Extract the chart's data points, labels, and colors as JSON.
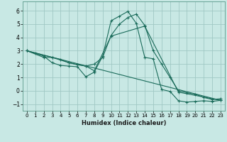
{
  "xlabel": "Humidex (Indice chaleur)",
  "xlim": [
    -0.5,
    23.5
  ],
  "ylim": [
    -1.5,
    6.7
  ],
  "xticks": [
    0,
    1,
    2,
    3,
    4,
    5,
    6,
    7,
    8,
    9,
    10,
    11,
    12,
    13,
    14,
    15,
    16,
    17,
    18,
    19,
    20,
    21,
    22,
    23
  ],
  "yticks": [
    -1,
    0,
    1,
    2,
    3,
    4,
    5,
    6
  ],
  "background_color": "#c8e8e4",
  "grid_color": "#a0c8c4",
  "line_color": "#1a6b5a",
  "line1_x": [
    0,
    1,
    2,
    3,
    4,
    5,
    6,
    7,
    8,
    9,
    10,
    11,
    12,
    13,
    14,
    15,
    16,
    17,
    18,
    19,
    20,
    21,
    22,
    23
  ],
  "line1_y": [
    3.0,
    2.8,
    2.6,
    2.1,
    1.9,
    1.85,
    1.8,
    1.05,
    1.4,
    2.6,
    5.25,
    5.6,
    5.95,
    5.05,
    2.5,
    2.4,
    0.1,
    -0.05,
    -0.75,
    -0.85,
    -0.8,
    -0.75,
    -0.8,
    -0.72
  ],
  "line2_x": [
    0,
    2,
    3,
    4,
    5,
    6,
    7,
    8,
    9,
    10,
    11,
    12,
    13,
    14,
    15,
    16,
    17,
    18,
    19,
    20,
    21,
    22,
    23
  ],
  "line2_y": [
    3.0,
    2.5,
    2.5,
    2.35,
    2.1,
    1.95,
    1.85,
    2.0,
    2.5,
    4.15,
    5.0,
    5.5,
    5.75,
    4.9,
    3.0,
    2.0,
    1.0,
    0.0,
    -0.15,
    -0.25,
    -0.5,
    -0.65,
    -0.6
  ],
  "line3_x": [
    0,
    3,
    5,
    7,
    8,
    10,
    14,
    18,
    23
  ],
  "line3_y": [
    3.0,
    2.5,
    2.1,
    1.85,
    1.5,
    4.1,
    4.85,
    -0.1,
    -0.72
  ],
  "line4_x": [
    0,
    23
  ],
  "line4_y": [
    3.0,
    -0.72
  ]
}
